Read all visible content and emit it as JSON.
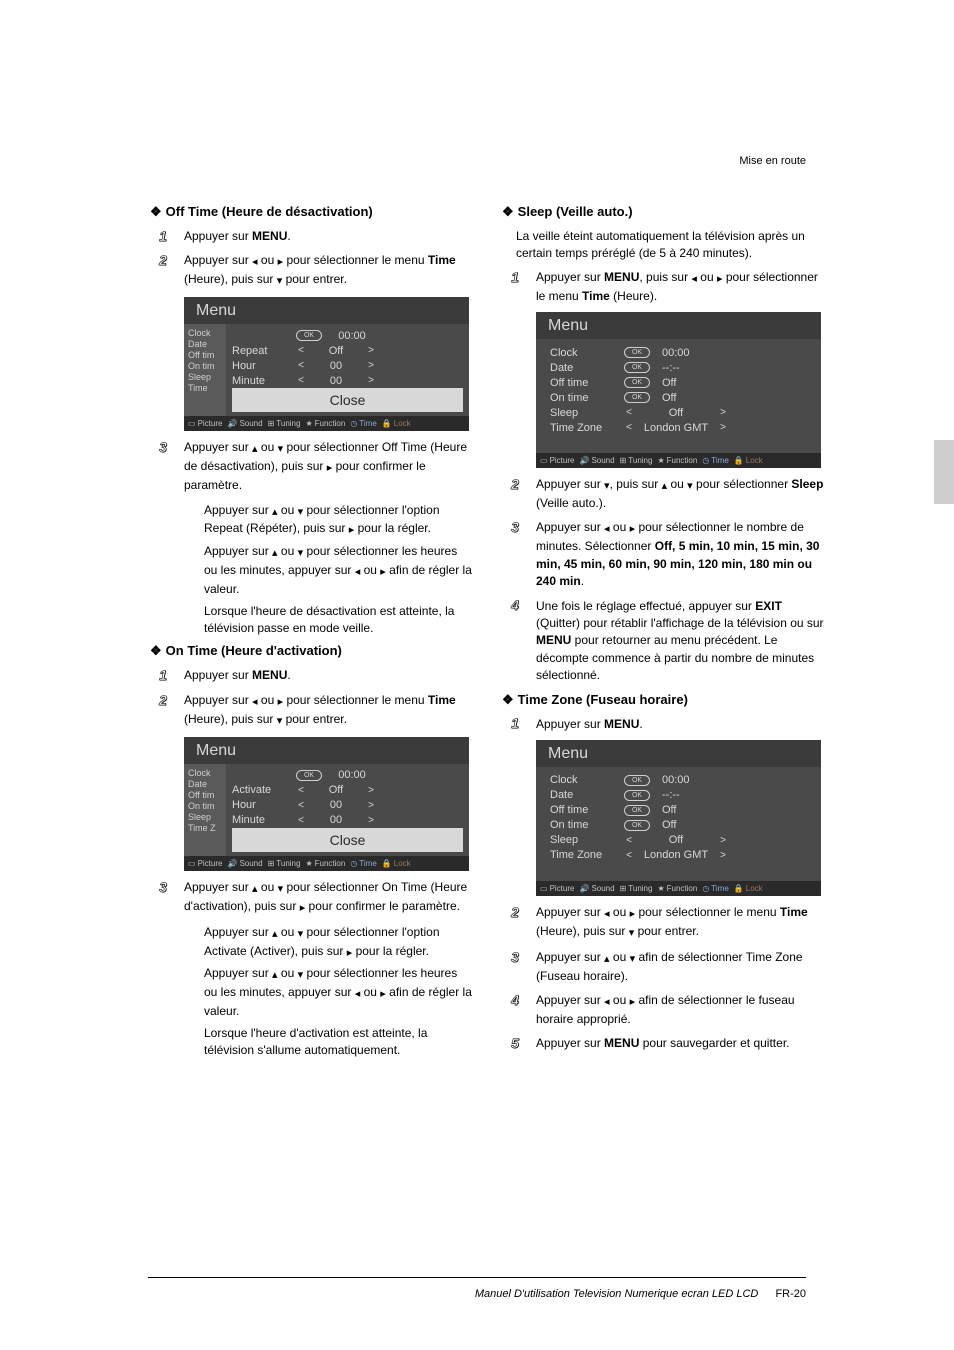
{
  "header_right": "Mise en route",
  "footer": {
    "manual": "Manuel D'utilisation Television Numerique ecran LED LCD",
    "page": "FR-20"
  },
  "arrows": {
    "left": "◂",
    "right": "▸",
    "up": "▴",
    "down": "▾"
  },
  "menu_tabs": {
    "picture": "Picture",
    "sound": "Sound",
    "tuning": "Tuning",
    "function": "Function",
    "time": "Time",
    "lock": "Lock"
  },
  "left_col": {
    "section1": {
      "title": "Off Time (Heure de désactivation)",
      "steps": [
        {
          "n": "1",
          "pre": "Appuyer sur ",
          "bold": "MENU",
          "post": "."
        },
        {
          "n": "2",
          "parts": [
            "Appuyer sur ",
            "L",
            " ou ",
            "R",
            " pour sélectionner le menu ",
            {
              "b": "Time"
            },
            " (Heure), puis sur ",
            "D",
            " pour entrer."
          ]
        }
      ],
      "menu": {
        "title": "Menu",
        "side": [
          "Clock",
          "Date",
          "Off tim",
          "On tim",
          "Sleep",
          "Time"
        ],
        "rows": [
          {
            "lbl": "",
            "ok": true,
            "val": "00:00"
          },
          {
            "lbl": "Repeat",
            "arr": true,
            "val": "Off"
          },
          {
            "lbl": "Hour",
            "arr": true,
            "val": "00"
          },
          {
            "lbl": "Minute",
            "arr": true,
            "val": "00"
          }
        ],
        "close": "Close"
      },
      "after": [
        {
          "n": "3",
          "text_parts": [
            "Appuyer sur ",
            "U",
            " ou ",
            "D",
            " pour sélectionner Off Time (Heure de désactivation), puis sur ",
            "R",
            " pour confirmer le paramètre."
          ]
        },
        {
          "text_parts": [
            "Appuyer sur ",
            "U",
            " ou ",
            "D",
            " pour sélectionner l'option Repeat (Répéter), puis sur ",
            "R",
            " pour la régler."
          ]
        },
        {
          "text_parts": [
            "Appuyer sur ",
            "U",
            " ou ",
            "D",
            " pour sélectionner les heures ou les minutes, appuyer sur ",
            "L",
            " ou ",
            "R",
            " afin de régler la valeur."
          ]
        },
        {
          "text": "Lorsque l'heure de désactivation est atteinte, la télévision passe en mode veille."
        }
      ]
    },
    "section2": {
      "title": "On Time (Heure d'activation)",
      "steps": [
        {
          "n": "1",
          "pre": "Appuyer sur ",
          "bold": "MENU",
          "post": "."
        },
        {
          "n": "2",
          "parts": [
            "Appuyer sur ",
            "L",
            " ou ",
            "R",
            " pour sélectionner le menu ",
            {
              "b": "Time"
            },
            " (Heure), puis sur ",
            "D",
            " pour entrer."
          ]
        }
      ],
      "menu": {
        "title": "Menu",
        "side": [
          "Clock",
          "Date",
          "Off tim",
          "On tim",
          "Sleep",
          "Time Z"
        ],
        "rows": [
          {
            "lbl": "",
            "ok": true,
            "val": "00:00"
          },
          {
            "lbl": "Activate",
            "arr": true,
            "val": "Off"
          },
          {
            "lbl": "Hour",
            "arr": true,
            "val": "00"
          },
          {
            "lbl": "Minute",
            "arr": true,
            "val": "00"
          }
        ],
        "close": "Close"
      },
      "after": [
        {
          "n": "3",
          "text_parts": [
            "Appuyer sur ",
            "U",
            " ou ",
            "D",
            " pour sélectionner On Time (Heure d'activation), puis sur ",
            "R",
            " pour confirmer le paramètre."
          ]
        },
        {
          "text_parts": [
            "Appuyer sur ",
            "U",
            " ou ",
            "D",
            " pour sélectionner l'option Activate (Activer), puis sur ",
            "R",
            " pour la régler."
          ]
        },
        {
          "text_parts": [
            "Appuyer sur ",
            "U",
            " ou ",
            "D",
            " pour sélectionner les heures ou les minutes, appuyer sur ",
            "L",
            " ou ",
            "R",
            " afin de régler la valeur."
          ]
        },
        {
          "text": "Lorsque l'heure d'activation est atteinte, la télévision s'allume automatiquement."
        }
      ]
    }
  },
  "right_col": {
    "section1": {
      "title": "Sleep (Veille auto.)",
      "intro": "La veille éteint automatiquement la télévision après un certain temps préréglé (de 5 à 240 minutes).",
      "steps1": [
        {
          "n": "1",
          "parts": [
            "Appuyer sur ",
            {
              "b": "MENU"
            },
            ", puis sur ",
            "L",
            " ou ",
            "R",
            " pour sélectionner le menu ",
            {
              "b": "Time"
            },
            " (Heure)."
          ]
        }
      ],
      "menu": {
        "title": "Menu",
        "full_rows": [
          {
            "lbl": "Clock",
            "ok": true,
            "val": "00:00"
          },
          {
            "lbl": "Date",
            "ok": true,
            "val": "--:--"
          },
          {
            "lbl": "Off time",
            "ok": true,
            "val": "Off"
          },
          {
            "lbl": "On time",
            "ok": true,
            "val": "Off"
          },
          {
            "lbl": "Sleep",
            "arr": true,
            "val": "Off"
          },
          {
            "lbl": "Time Zone",
            "arr": true,
            "val": "London GMT"
          }
        ]
      },
      "steps2": [
        {
          "n": "2",
          "parts": [
            "Appuyer sur ",
            "D",
            ", puis sur ",
            "U",
            " ou ",
            "D",
            " pour sélectionner ",
            {
              "b": "Sleep"
            },
            " (Veille auto.)."
          ]
        },
        {
          "n": "3",
          "parts": [
            "Appuyer sur ",
            "L",
            " ou ",
            "R",
            " pour sélectionner le nombre de minutes. Sélectionner ",
            {
              "b": "Off, 5 min, 10 min, 15 min, 30 min, 45 min, 60 min, 90 min, 120 min, 180 min ou 240 min"
            },
            "."
          ]
        },
        {
          "n": "4",
          "parts": [
            "Une fois le réglage effectué, appuyer sur ",
            {
              "b": "EXIT"
            },
            " (Quitter) pour rétablir l'affichage de la télévision ou sur ",
            {
              "b": "MENU"
            },
            " pour retourner au menu précédent. Le décompte commence à partir du nombre de minutes sélectionné."
          ]
        }
      ]
    },
    "section2": {
      "title": "Time Zone (Fuseau horaire)",
      "steps1": [
        {
          "n": "1",
          "pre": "Appuyer sur ",
          "bold": "MENU",
          "post": "."
        }
      ],
      "menu": {
        "title": "Menu",
        "full_rows": [
          {
            "lbl": "Clock",
            "ok": true,
            "val": "00:00"
          },
          {
            "lbl": "Date",
            "ok": true,
            "val": "--:--"
          },
          {
            "lbl": "Off time",
            "ok": true,
            "val": "Off"
          },
          {
            "lbl": "On time",
            "ok": true,
            "val": "Off"
          },
          {
            "lbl": "Sleep",
            "arr": true,
            "val": "Off"
          },
          {
            "lbl": "Time Zone",
            "arr": true,
            "val": "London GMT"
          }
        ]
      },
      "steps2": [
        {
          "n": "2",
          "parts": [
            "Appuyer sur ",
            "L",
            " ou ",
            "R",
            " pour sélectionner le menu ",
            {
              "b": "Time"
            },
            " (Heure), puis sur ",
            "D",
            " pour entrer."
          ]
        },
        {
          "n": "3",
          "parts": [
            "Appuyer sur ",
            "U",
            " ou ",
            "D",
            " afin de sélectionner Time Zone (Fuseau horaire)."
          ]
        },
        {
          "n": "4",
          "parts": [
            "Appuyer sur ",
            "L",
            " ou ",
            "R",
            " afin de sélectionner le fuseau horaire approprié."
          ]
        },
        {
          "n": "5",
          "parts": [
            "Appuyer sur ",
            {
              "b": "MENU"
            },
            " pour sauvegarder et quitter."
          ]
        }
      ]
    }
  }
}
